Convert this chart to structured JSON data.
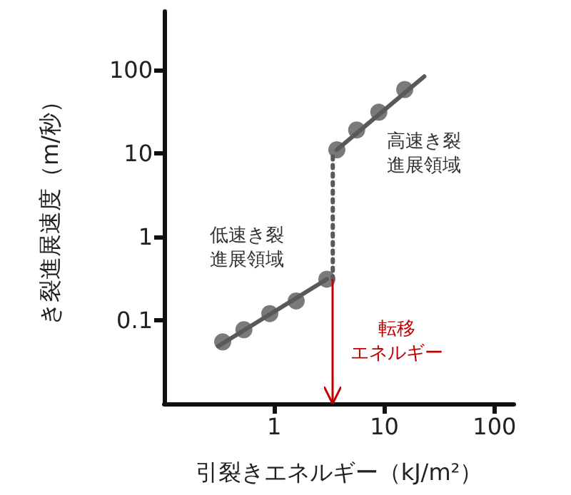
{
  "chart_data": {
    "type": "scatter",
    "xlabel": "引裂きエネルギー（kJ/m²）",
    "ylabel": "き裂進展速度（m/秒）",
    "log": "xy",
    "xlim": [
      0.1,
      150
    ],
    "ylim": [
      0.01,
      500
    ],
    "xticks": [
      1,
      10,
      100
    ],
    "yticks": [
      0.1,
      1,
      10,
      100
    ],
    "grid": false,
    "marker": "circle",
    "series": [
      {
        "type": "line",
        "marker": "none",
        "color": "#595959",
        "x": [
          0.31,
          3.0
        ],
        "values": [
          0.049,
          0.31
        ]
      },
      {
        "type": "line",
        "marker": "none",
        "color": "#595959",
        "x": [
          3.7,
          23
        ],
        "values": [
          11,
          83
        ]
      },
      {
        "type": "line",
        "marker": "none",
        "line_style": "dotted",
        "color": "#595959",
        "x": [
          3.4,
          3.4
        ],
        "values": [
          0.31,
          10
        ]
      },
      {
        "color": "#595959",
        "x": [
          0.34,
          0.53,
          0.91,
          1.58,
          3.0
        ],
        "values": [
          0.055,
          0.077,
          0.12,
          0.17,
          0.31
        ]
      },
      {
        "color": "#595959",
        "x": [
          3.7,
          5.6,
          8.9,
          15.3
        ],
        "values": [
          11,
          19,
          31,
          58
        ]
      }
    ],
    "ref_lines": [
      {
        "axis": "x",
        "value": 3.4,
        "label": "転移エネルギー",
        "color": "#c00000"
      }
    ],
    "annotations": [
      "低速き裂進展領域",
      "高速き裂進展領域"
    ]
  }
}
